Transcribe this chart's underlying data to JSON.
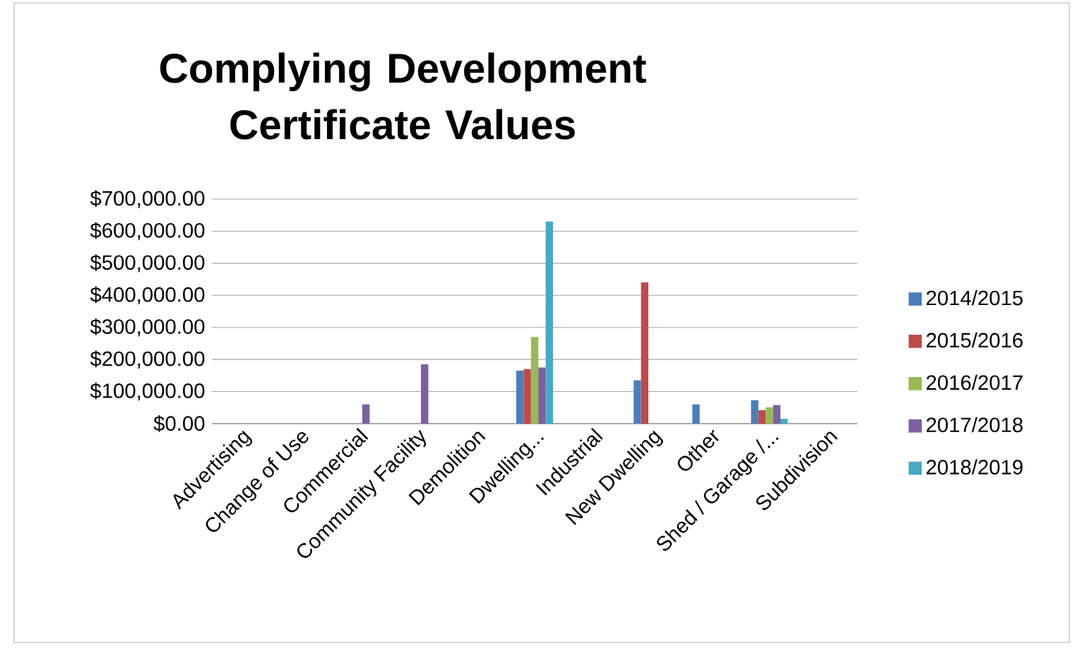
{
  "chart_data": {
    "type": "bar",
    "title": "Complying Development Certificate Values",
    "categories": [
      "Advertising",
      "Change of Use",
      "Commercial",
      "Community Facility",
      "Demolition",
      "Dwelling...",
      "Industrial",
      "New Dwelling",
      "Other",
      "Shed / Garage /...",
      "Subdivision"
    ],
    "series": [
      {
        "name": "2014/2015",
        "color": "#4a7ebb",
        "values": [
          null,
          null,
          null,
          null,
          null,
          165000,
          null,
          135000,
          60000,
          73000,
          null
        ]
      },
      {
        "name": "2015/2016",
        "color": "#be4b48",
        "values": [
          null,
          null,
          null,
          null,
          null,
          170000,
          null,
          440000,
          null,
          42000,
          null
        ]
      },
      {
        "name": "2016/2017",
        "color": "#98b954",
        "values": [
          null,
          null,
          null,
          null,
          null,
          270000,
          null,
          null,
          null,
          51000,
          null
        ]
      },
      {
        "name": "2017/2018",
        "color": "#7d60a0",
        "values": [
          null,
          null,
          60000,
          185000,
          null,
          175000,
          null,
          null,
          null,
          58000,
          null
        ]
      },
      {
        "name": "2018/2019",
        "color": "#46aac5",
        "values": [
          null,
          null,
          null,
          null,
          null,
          630000,
          null,
          null,
          null,
          15000,
          null
        ]
      }
    ],
    "ylim": [
      0,
      700000
    ],
    "yticks": [
      {
        "value": 0,
        "label": "$0.00"
      },
      {
        "value": 100000,
        "label": "$100,000.00"
      },
      {
        "value": 200000,
        "label": "$200,000.00"
      },
      {
        "value": 300000,
        "label": "$300,000.00"
      },
      {
        "value": 400000,
        "label": "$400,000.00"
      },
      {
        "value": 500000,
        "label": "$500,000.00"
      },
      {
        "value": 600000,
        "label": "$600,000.00"
      },
      {
        "value": 700000,
        "label": "$700,000.00"
      }
    ],
    "grid": "y",
    "legend": "right"
  }
}
